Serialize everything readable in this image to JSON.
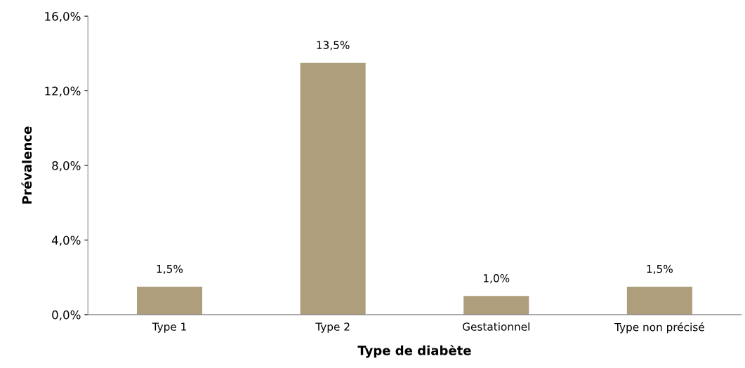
{
  "chart_data": {
    "type": "bar",
    "xlabel": "Type de diabète",
    "ylabel": "Prévalence",
    "categories": [
      "Type 1",
      "Type 2",
      "Gestationnel",
      "Type non précisé"
    ],
    "values": [
      1.5,
      13.5,
      1.0,
      1.5
    ],
    "value_labels": [
      "1,5%",
      "13,5%",
      "1,0%",
      "1,5%"
    ],
    "color": "#ae9e7c",
    "ylim": [
      0,
      16
    ],
    "yticks": [
      {
        "value": 0,
        "label": "0,0%"
      },
      {
        "value": 4,
        "label": "4,0%"
      },
      {
        "value": 8,
        "label": "8,0%"
      },
      {
        "value": 12,
        "label": "12,0%"
      },
      {
        "value": 16,
        "label": "16,0%"
      }
    ],
    "grid": false,
    "legend": false
  }
}
